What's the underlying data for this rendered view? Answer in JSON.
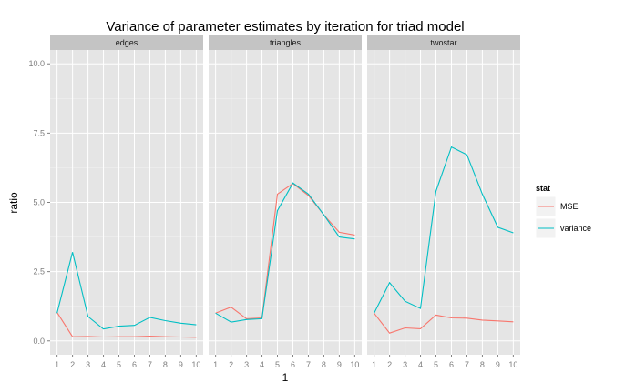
{
  "chart_data": {
    "type": "line",
    "title": "Variance of parameter estimates by iteration for triad model",
    "xlabel": "1",
    "ylabel": "ratio",
    "x": [
      1,
      2,
      3,
      4,
      5,
      6,
      7,
      8,
      9,
      10
    ],
    "xticks": [
      "1",
      "2",
      "3",
      "4",
      "5",
      "6",
      "7",
      "8",
      "9",
      "10"
    ],
    "ylim": [
      -0.5,
      10.5
    ],
    "yticks": [
      "0.0",
      "2.5",
      "5.0",
      "7.5",
      "10.0"
    ],
    "ytick_values": [
      0,
      2.5,
      5,
      7.5,
      10
    ],
    "grid": true,
    "legend": {
      "title": "stat",
      "position": "right",
      "entries": [
        {
          "name": "MSE",
          "color": "#F8766D"
        },
        {
          "name": "variance",
          "color": "#00BFC4"
        }
      ]
    },
    "facets": [
      {
        "label": "edges",
        "series": [
          {
            "name": "MSE",
            "values": [
              1.03,
              0.15,
              0.16,
              0.14,
              0.15,
              0.15,
              0.17,
              0.15,
              0.14,
              0.13
            ]
          },
          {
            "name": "variance",
            "values": [
              1.0,
              3.2,
              0.88,
              0.43,
              0.53,
              0.56,
              0.85,
              0.73,
              0.64,
              0.58
            ]
          }
        ]
      },
      {
        "label": "triangles",
        "series": [
          {
            "name": "MSE",
            "values": [
              1.0,
              1.22,
              0.8,
              0.83,
              5.3,
              5.68,
              5.25,
              4.55,
              3.92,
              3.82
            ]
          },
          {
            "name": "variance",
            "values": [
              1.0,
              0.68,
              0.77,
              0.8,
              4.7,
              5.7,
              5.3,
              4.55,
              3.75,
              3.68
            ]
          }
        ]
      },
      {
        "label": "twostar",
        "series": [
          {
            "name": "MSE",
            "values": [
              1.0,
              0.28,
              0.47,
              0.44,
              0.93,
              0.83,
              0.82,
              0.75,
              0.72,
              0.69
            ]
          },
          {
            "name": "variance",
            "values": [
              1.0,
              2.1,
              1.43,
              1.17,
              5.4,
              7.0,
              6.72,
              5.3,
              4.1,
              3.9
            ]
          }
        ]
      }
    ]
  }
}
